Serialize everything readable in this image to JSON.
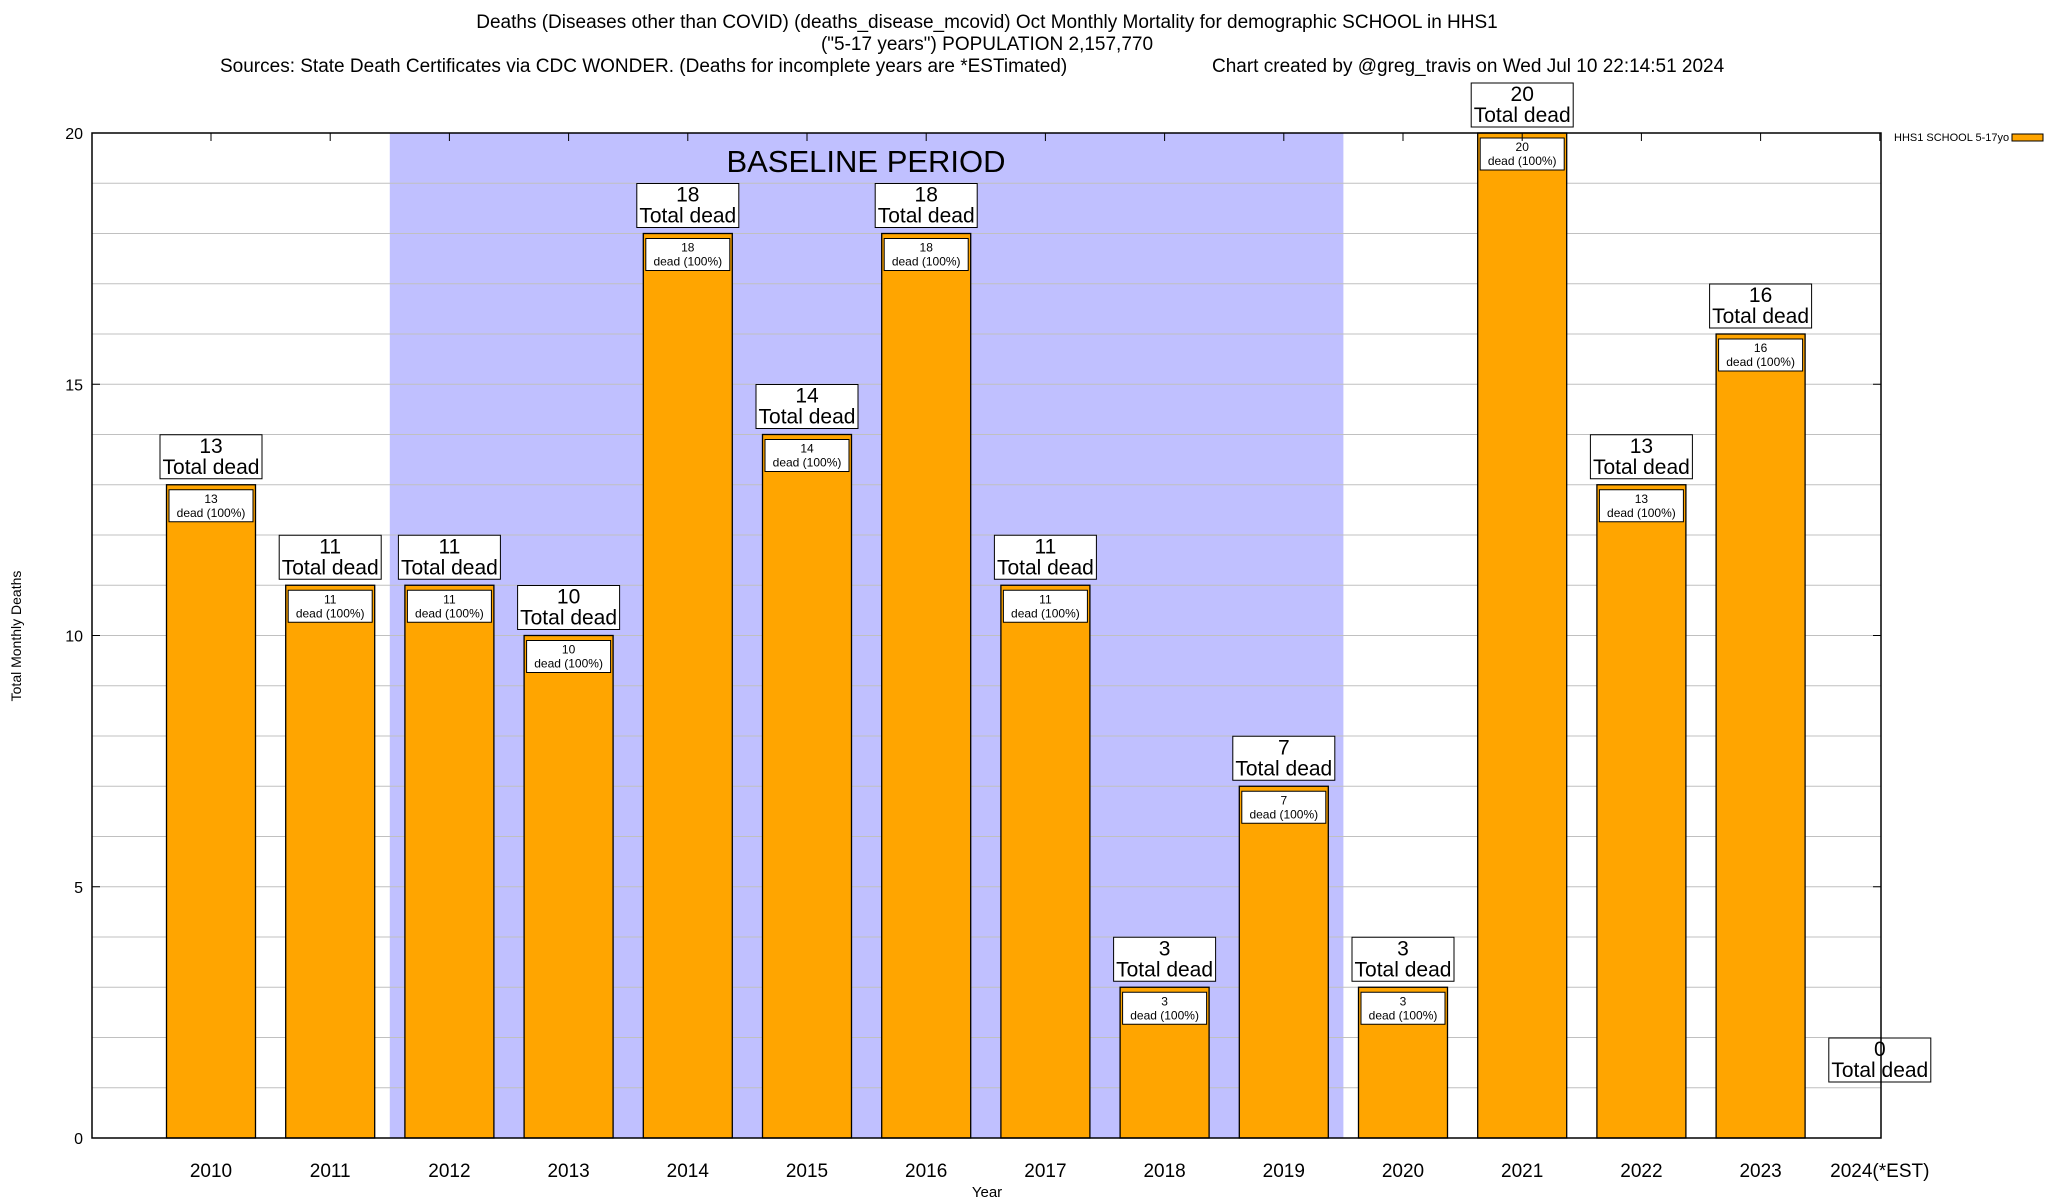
{
  "chart_data": {
    "type": "bar",
    "title_lines": [
      "Deaths (Diseases other than COVID) (deaths_disease_mcovid) Oct Monthly Mortality for demographic SCHOOL in HHS1",
      "(\"5-17 years\") POPULATION 2,157,770"
    ],
    "sources": "Sources: State Death Certificates via CDC WONDER. (Deaths for incomplete years are *ESTimated)",
    "credit": "Chart created by @greg_travis on Wed Jul 10 22:14:51 2024",
    "xlabel": "Year",
    "ylabel": "Total Monthly Deaths",
    "ylim": [
      0,
      20
    ],
    "yticks": [
      0,
      5,
      10,
      15,
      20
    ],
    "grid": true,
    "legend_placement": "top-right (outside)",
    "categories": [
      "2010",
      "2011",
      "2012",
      "2013",
      "2014",
      "2015",
      "2016",
      "2017",
      "2018",
      "2019",
      "2020",
      "2021",
      "2022",
      "2023",
      "2024(*EST)"
    ],
    "series": [
      {
        "name": "HHS1 SCHOOL 5-17yo",
        "color": "#ffa500",
        "values": [
          13,
          11,
          11,
          10,
          18,
          14,
          18,
          11,
          3,
          7,
          3,
          20,
          13,
          16,
          0
        ]
      }
    ],
    "total_label": "Total dead",
    "inner_label": "dead (100%)",
    "baseline": {
      "label": "BASELINE PERIOD",
      "from": "2012",
      "to": "2019",
      "color": "#c0c0ff"
    }
  }
}
